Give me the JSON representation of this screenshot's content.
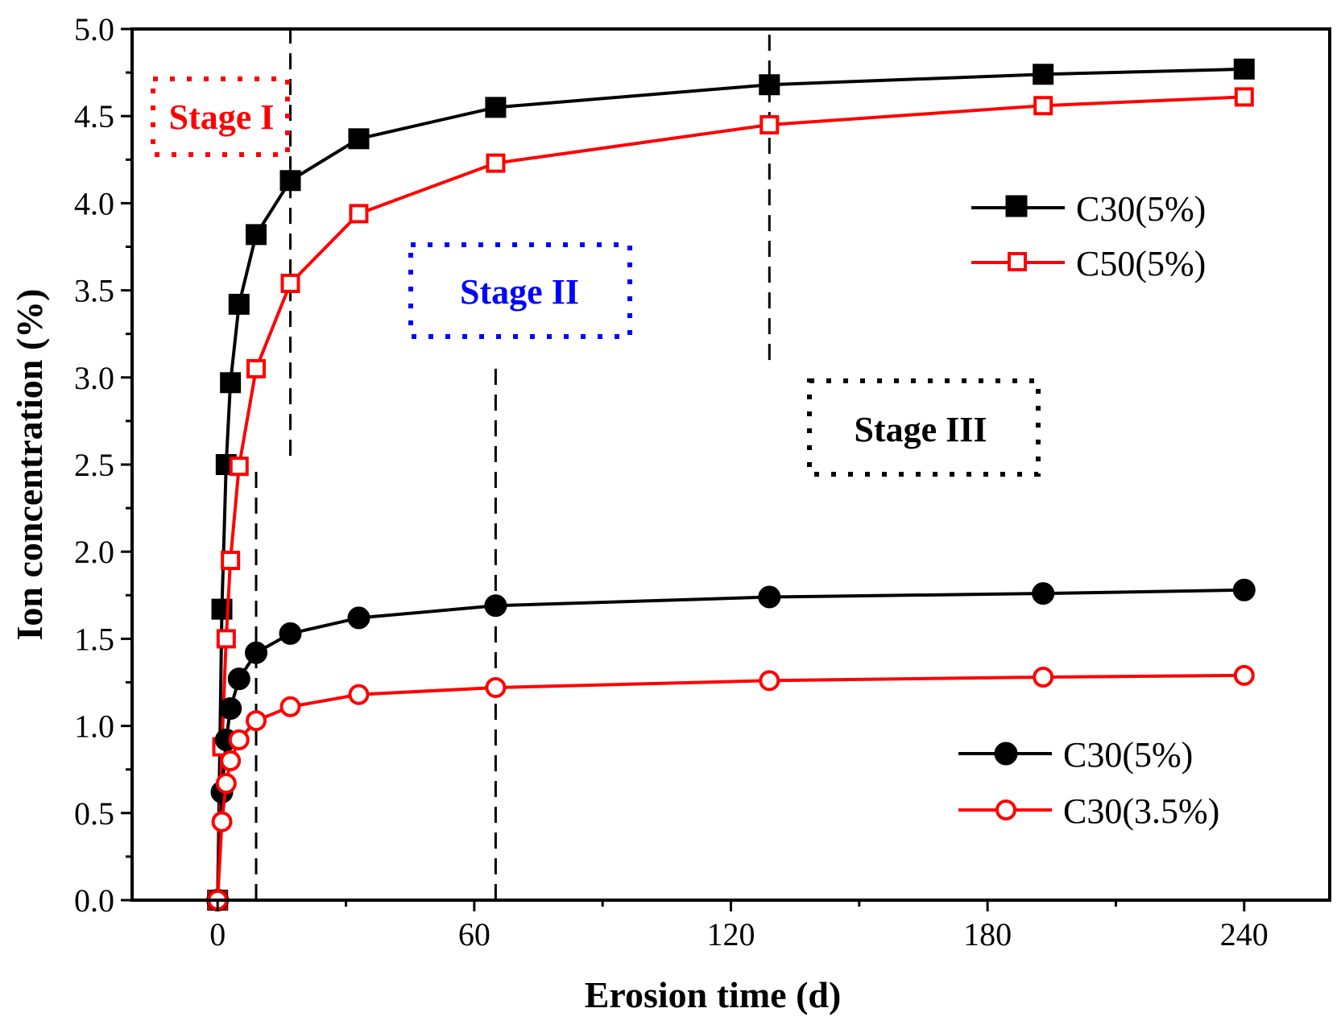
{
  "chart_data": {
    "type": "line",
    "title": "",
    "xlabel": "Erosion time (d)",
    "ylabel": "Ion concentration (%)",
    "xlim": [
      -20,
      260
    ],
    "ylim": [
      0,
      5.0
    ],
    "x_ticks": [
      0,
      60,
      120,
      180,
      240
    ],
    "x_tick_labels": [
      "0",
      "60",
      "120",
      "180",
      "240"
    ],
    "x_minor_ticks": [
      30,
      90,
      150,
      210
    ],
    "y_ticks": [
      0,
      0.5,
      1.0,
      1.5,
      2.0,
      2.5,
      3.0,
      3.5,
      4.0,
      4.5,
      5.0
    ],
    "y_tick_labels": [
      "0.0",
      "0.5",
      "1.0",
      "1.5",
      "2.0",
      "2.5",
      "3.0",
      "3.5",
      "4.0",
      "4.5",
      "5.0"
    ],
    "grid": false,
    "series": [
      {
        "name": "C30(5%)",
        "color": "#000000",
        "marker": "square-filled",
        "legend_group": "upper",
        "x": [
          0,
          1,
          2,
          3,
          5,
          9,
          17,
          33,
          65,
          129,
          193,
          240
        ],
        "y": [
          0,
          1.67,
          2.5,
          2.97,
          3.42,
          3.82,
          4.13,
          4.37,
          4.55,
          4.68,
          4.74,
          4.77
        ]
      },
      {
        "name": "C50(5%)",
        "color": "#ff0000",
        "marker": "square-open",
        "legend_group": "upper",
        "x": [
          0,
          1,
          2,
          3,
          5,
          9,
          17,
          33,
          65,
          129,
          193,
          240
        ],
        "y": [
          0,
          0.88,
          1.5,
          1.95,
          2.49,
          3.05,
          3.54,
          3.94,
          4.23,
          4.45,
          4.56,
          4.61
        ]
      },
      {
        "name": "C30(5%)",
        "color": "#000000",
        "marker": "circle-filled",
        "legend_group": "lower",
        "x": [
          0,
          1,
          2,
          3,
          5,
          9,
          17,
          33,
          65,
          129,
          193,
          240
        ],
        "y": [
          0,
          0.62,
          0.92,
          1.1,
          1.27,
          1.42,
          1.53,
          1.62,
          1.69,
          1.74,
          1.76,
          1.78
        ]
      },
      {
        "name": "C30(3.5%)",
        "color": "#ff0000",
        "marker": "circle-open",
        "legend_group": "lower",
        "x": [
          0,
          1,
          2,
          3,
          5,
          9,
          17,
          33,
          65,
          129,
          193,
          240
        ],
        "y": [
          0,
          0.45,
          0.67,
          0.8,
          0.92,
          1.03,
          1.11,
          1.18,
          1.22,
          1.26,
          1.28,
          1.29
        ]
      }
    ],
    "reference_lines": [
      {
        "x": 9,
        "y_from": 0,
        "y_to": 2.5
      },
      {
        "x": 17,
        "y_from": 2.55,
        "y_to": 5.0
      },
      {
        "x": 65,
        "y_from": 0,
        "y_to": 3.05
      },
      {
        "x": 129,
        "y_from": 3.1,
        "y_to": 5.0
      }
    ],
    "annotations": [
      {
        "text": "Stage I",
        "color": "#ff0000"
      },
      {
        "text": "Stage II",
        "color": "#0000ff"
      },
      {
        "text": "Stage III",
        "color": "#000000"
      }
    ]
  }
}
